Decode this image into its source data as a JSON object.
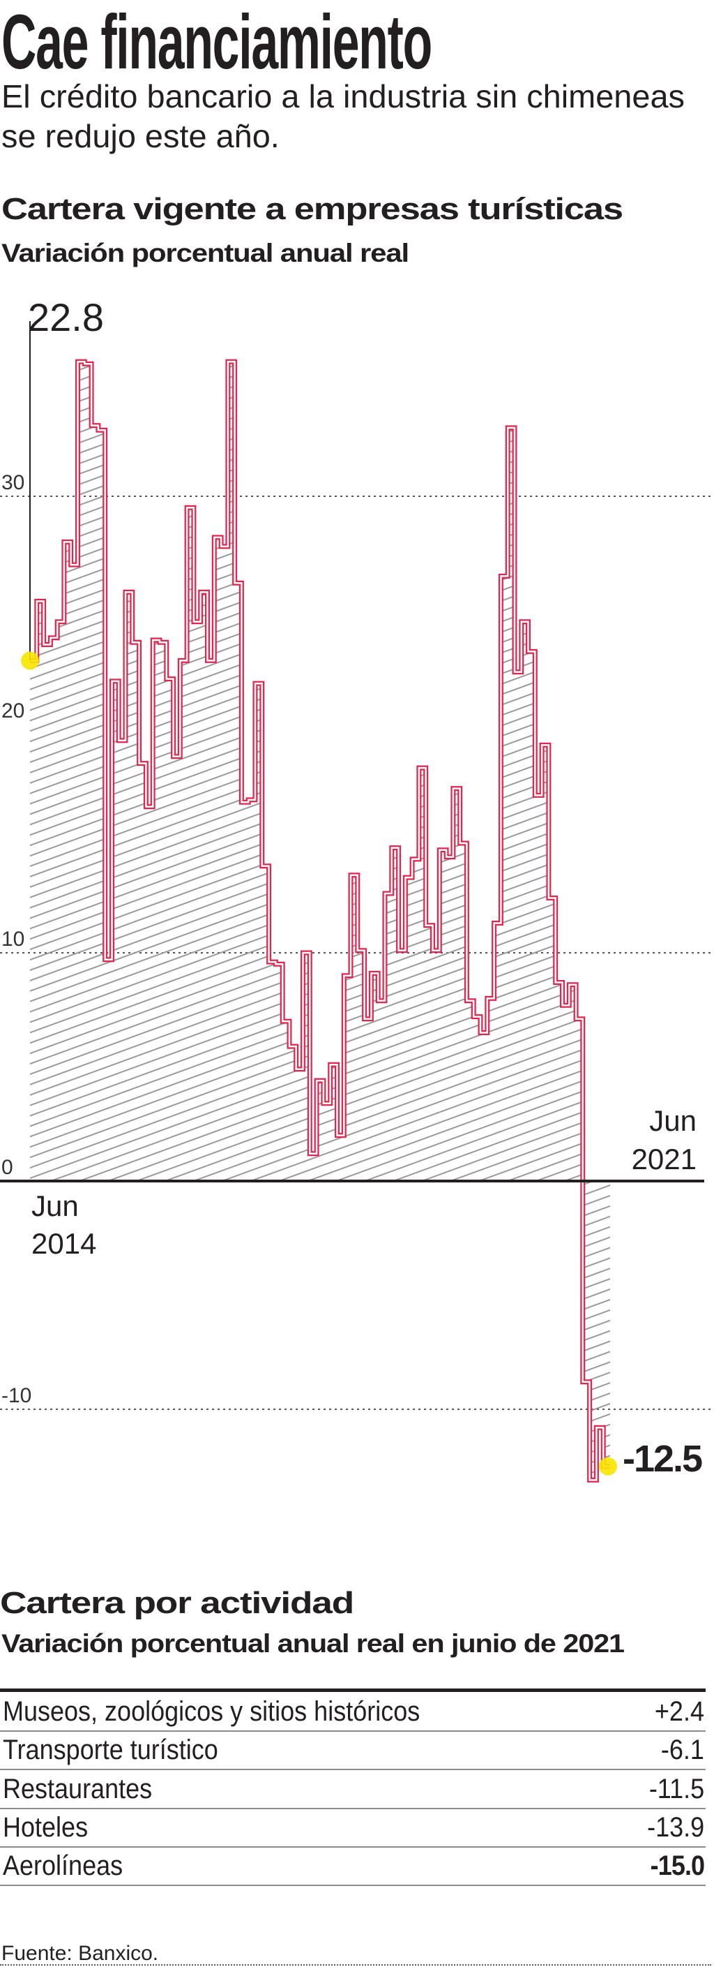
{
  "header": {
    "title": "Cae financiamiento",
    "subtitle_lines": [
      "El crédito bancario a la industria sin chimeneas",
      "se redujo este año."
    ]
  },
  "chart_section": {
    "title": "Cartera vigente a empresas turísticas",
    "subtitle": "Variación porcentual anual real"
  },
  "chart_data": {
    "type": "line",
    "style": "step",
    "title": "Cartera vigente a empresas turísticas",
    "subtitle": "Variación porcentual anual real",
    "x_start": "2014-06",
    "x_end": "2021-06",
    "frequency": "monthly",
    "x_labels": {
      "start": [
        "Jun",
        "2014"
      ],
      "end": [
        "Jun",
        "2021"
      ]
    },
    "y_ticks": [
      30,
      20,
      10,
      0,
      -10
    ],
    "y_tick_labels": [
      "30",
      "20",
      "10",
      "0",
      "-10"
    ],
    "gridlines_dotted": [
      30,
      10,
      -10
    ],
    "ylim": [
      -14,
      37
    ],
    "annotations": {
      "first": "22.8",
      "last": "-12.5"
    },
    "series": [
      {
        "values": [
          22.8,
          25.4,
          23.5,
          23.8,
          24.5,
          28.0,
          27.0,
          35.9,
          35.8,
          33.1,
          32.9,
          9.7,
          21.9,
          19.3,
          25.8,
          23.6,
          18.3,
          16.4,
          23.7,
          23.6,
          22.0,
          18.6,
          22.8,
          29.5,
          24.5,
          25.8,
          22.8,
          28.2,
          27.8,
          35.9,
          26.2,
          16.6,
          16.7,
          21.8,
          13.8,
          9.6,
          9.5,
          7.0,
          5.9,
          4.9,
          10.0,
          1.2,
          4.4,
          3.4,
          5.1,
          2.0,
          9.0,
          13.4,
          10.1,
          7.1,
          9.1,
          7.9,
          12.6,
          14.6,
          10.1,
          13.3,
          14.1,
          18.1,
          11.2,
          10.1,
          14.5,
          14.2,
          17.2,
          14.8,
          7.9,
          7.2,
          6.5,
          8.0,
          11.3,
          26.5,
          33.0,
          22.3,
          24.5,
          23.2,
          16.9,
          19.1,
          12.4,
          8.7,
          7.7,
          8.6,
          7.1,
          -8.8,
          -13.1,
          -10.8,
          -12.5
        ]
      }
    ],
    "colors": {
      "line": "#e3254d",
      "hatch": "#9a9a9a",
      "highlight": "#f7e600",
      "zero_line": "#231f20"
    }
  },
  "table_section": {
    "title": "Cartera por actividad",
    "subtitle": "Variación porcentual anual real en junio de 2021",
    "rows": [
      {
        "label": "Museos, zoológicos y sitios históricos",
        "value": "+2.4"
      },
      {
        "label": "Transporte turístico",
        "value": "-6.1"
      },
      {
        "label": "Restaurantes",
        "value": "-11.5"
      },
      {
        "label": "Hoteles",
        "value": "-13.9"
      },
      {
        "label": "Aerolíneas",
        "value": "-15.0",
        "bold": true
      }
    ]
  },
  "footer": {
    "source": "Fuente: Banxico."
  }
}
